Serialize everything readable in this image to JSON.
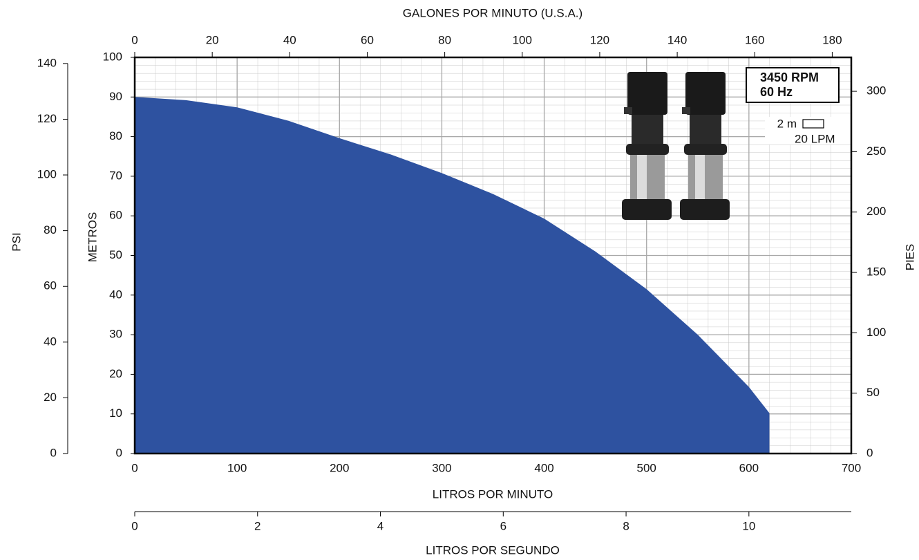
{
  "chart_data": {
    "type": "area",
    "x_label": "LITROS POR MINUTO",
    "y_label": "METROS",
    "x": [
      0,
      50,
      100,
      150,
      200,
      250,
      300,
      350,
      400,
      450,
      500,
      550,
      600,
      620
    ],
    "values": [
      90,
      89.2,
      87.4,
      84,
      79.6,
      75.5,
      70.8,
      65.5,
      59.3,
      51,
      41.5,
      30,
      16.8,
      10.2
    ],
    "color": "#2e52a0",
    "xlim": [
      0,
      700
    ],
    "xticks": [
      0,
      100,
      200,
      300,
      400,
      500,
      600,
      700
    ],
    "ylim": [
      0,
      100
    ],
    "yticks": [
      0,
      10,
      20,
      30,
      40,
      50,
      60,
      70,
      80,
      90,
      100
    ],
    "grid": true,
    "top_axis": {
      "label": "GALONES POR MINUTO (U.S.A.)",
      "lim": [
        0,
        184.92
      ],
      "ticks": [
        0,
        20,
        40,
        60,
        80,
        100,
        120,
        140,
        160,
        180
      ]
    },
    "right_axis": {
      "label": "PIES",
      "lim": [
        0,
        328.1
      ],
      "ticks": [
        0,
        50,
        100,
        150,
        200,
        250,
        300
      ]
    },
    "left_axis": {
      "label": "PSI",
      "lim": [
        0,
        142.2
      ],
      "ticks": [
        0,
        20,
        40,
        60,
        80,
        100,
        120,
        140
      ]
    },
    "bottom_axis": {
      "label": "LITROS POR SEGUNDO",
      "lim": [
        0,
        11.667
      ],
      "ticks": [
        0,
        2,
        4,
        6,
        8,
        10
      ]
    },
    "annotations": [
      "3450 RPM",
      "60 Hz",
      "2 m",
      "20 LPM"
    ]
  }
}
